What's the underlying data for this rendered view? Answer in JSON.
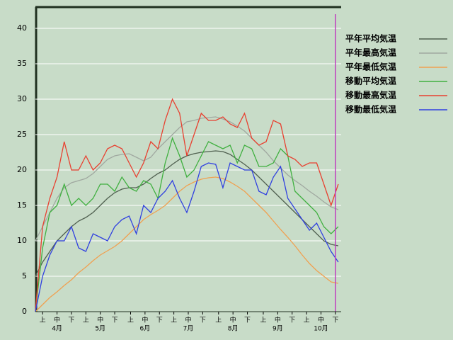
{
  "chart_data": {
    "type": "line",
    "x": [
      0,
      5,
      10,
      15,
      20,
      25,
      30,
      35,
      40,
      45,
      50,
      55,
      60,
      65,
      70,
      75,
      80,
      85,
      90,
      95,
      100,
      105,
      110,
      115,
      120,
      125,
      130,
      135,
      140,
      145,
      150,
      155,
      160,
      165,
      170,
      175,
      180,
      185,
      190,
      195,
      200,
      205,
      210
    ],
    "xlim": [
      0,
      212
    ],
    "ylim": [
      0,
      43
    ],
    "yticks": [
      0,
      5,
      10,
      15,
      20,
      25,
      30,
      35,
      40
    ],
    "grid": true,
    "xticks": [
      {
        "value": 5,
        "label": "上"
      },
      {
        "value": 15,
        "label": "中"
      },
      {
        "value": 25,
        "label": "下"
      },
      {
        "value": 35,
        "label": "上"
      },
      {
        "value": 45,
        "label": "中"
      },
      {
        "value": 55,
        "label": "下"
      },
      {
        "value": 66,
        "label": "上"
      },
      {
        "value": 76,
        "label": "中"
      },
      {
        "value": 86,
        "label": "下"
      },
      {
        "value": 96,
        "label": "上"
      },
      {
        "value": 106,
        "label": "中"
      },
      {
        "value": 116,
        "label": "下"
      },
      {
        "value": 127,
        "label": "上"
      },
      {
        "value": 137,
        "label": "中"
      },
      {
        "value": 147,
        "label": "下"
      },
      {
        "value": 158,
        "label": "上"
      },
      {
        "value": 168,
        "label": "中"
      },
      {
        "value": 178,
        "label": "下"
      },
      {
        "value": 188,
        "label": "上"
      },
      {
        "value": 198,
        "label": "中"
      },
      {
        "value": 208,
        "label": "下"
      }
    ],
    "month_ticks": [
      {
        "value": 15,
        "label": "4月"
      },
      {
        "value": 45,
        "label": "5月"
      },
      {
        "value": 76,
        "label": "6月"
      },
      {
        "value": 106,
        "label": "7月"
      },
      {
        "value": 137,
        "label": "8月"
      },
      {
        "value": 168,
        "label": "9月"
      },
      {
        "value": 198,
        "label": "10月"
      }
    ],
    "current_x": 208,
    "current_color": "#c040c0",
    "series": [
      {
        "name": "平年平均気温",
        "color": "#506050",
        "values": [
          5,
          7,
          8.5,
          10,
          11,
          12,
          12.8,
          13.3,
          14,
          15,
          16,
          16.8,
          17.3,
          17.5,
          17.5,
          18,
          18.8,
          19.5,
          20,
          20.8,
          21.5,
          22,
          22.3,
          22.5,
          22.6,
          22.7,
          22.6,
          22.2,
          21.5,
          20.8,
          20,
          19,
          18,
          17,
          16,
          15,
          14,
          13,
          12,
          11,
          10,
          9.5,
          9.3
        ]
      },
      {
        "name": "平年最高気温",
        "color": "#a0a8a0",
        "values": [
          10,
          12,
          14,
          16,
          17.5,
          18.2,
          18.5,
          18.8,
          19.5,
          20.5,
          21.5,
          22,
          22.2,
          22.3,
          21.8,
          21.3,
          21.8,
          23,
          24,
          25,
          26,
          26.8,
          27,
          27.3,
          27.4,
          27.5,
          27.2,
          26.8,
          26.2,
          25.5,
          24.5,
          23.5,
          22.5,
          21.3,
          20.3,
          19.3,
          18.5,
          17.8,
          17,
          16.3,
          15.5,
          14.8,
          14.4
        ]
      },
      {
        "name": "平年最低気温",
        "color": "#f0a050",
        "values": [
          0,
          1,
          2,
          2.8,
          3.7,
          4.5,
          5.5,
          6.3,
          7.2,
          8,
          8.6,
          9.2,
          10,
          11,
          12,
          13,
          13.7,
          14.3,
          15,
          16,
          17,
          17.8,
          18.3,
          18.7,
          18.9,
          19,
          18.8,
          18.3,
          17.7,
          17,
          16,
          15,
          14,
          12.8,
          11.6,
          10.5,
          9.3,
          8,
          6.8,
          5.8,
          5,
          4.2,
          4
        ]
      },
      {
        "name": "移動平均気温",
        "color": "#40b040",
        "values": [
          0,
          9,
          14,
          15,
          18,
          15,
          16,
          15,
          16,
          18,
          18,
          17,
          19,
          17.5,
          17,
          18.5,
          18,
          16,
          21,
          24.5,
          22,
          19,
          20,
          22,
          24,
          23.5,
          23,
          23.5,
          21,
          23.5,
          23,
          20.5,
          20.5,
          21,
          23,
          22,
          17,
          16,
          15,
          14,
          12,
          11,
          12
        ]
      },
      {
        "name": "移動最高気温",
        "color": "#e84030",
        "values": [
          0,
          12,
          16,
          19,
          24,
          20,
          20,
          22,
          20,
          21,
          23,
          23.5,
          23,
          21,
          19,
          21,
          24,
          23,
          27,
          30,
          28,
          22,
          25,
          28,
          27,
          27,
          27.5,
          26.5,
          26,
          28,
          24.5,
          23.5,
          24,
          27,
          26.5,
          22,
          21.5,
          20.5,
          21,
          21,
          18,
          15,
          18
        ]
      },
      {
        "name": "移動最低気温",
        "color": "#3040e0",
        "values": [
          0,
          5,
          8,
          10,
          10,
          12,
          9,
          8.5,
          11,
          10.5,
          10,
          12,
          13,
          13.5,
          11,
          15,
          14,
          16,
          17,
          18.5,
          16,
          14,
          17,
          20.5,
          21,
          20.8,
          17.5,
          21,
          20.5,
          20,
          20,
          17,
          16.5,
          19,
          20.5,
          16,
          14.5,
          13,
          11.5,
          12.5,
          10.5,
          8.5,
          7
        ]
      }
    ]
  }
}
